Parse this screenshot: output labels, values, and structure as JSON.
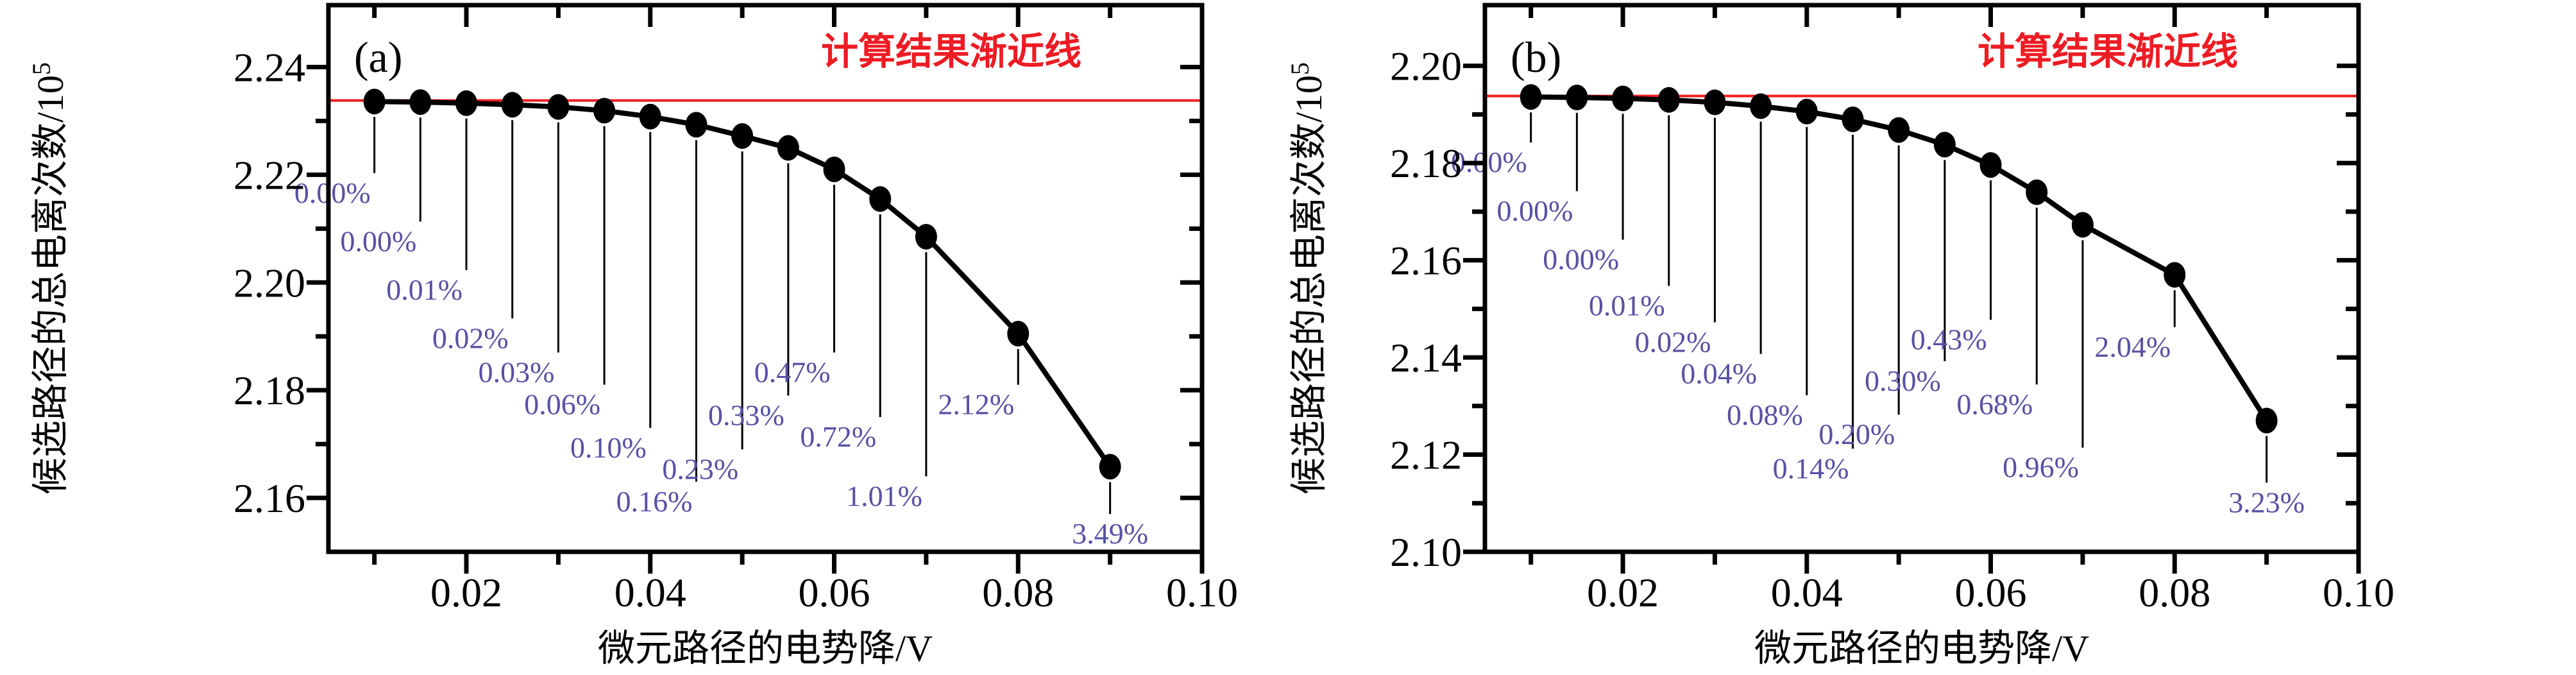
{
  "figure": {
    "background": "#ffffff",
    "series_color": "#000000",
    "asymptote_color": "#ed1c24",
    "percent_label_color": "#5751a5"
  },
  "chart_data": [
    {
      "type": "line",
      "panel_label": "(a)",
      "xlabel": "微元路径的电势降/V",
      "ylabel_base": "候选路径的总电离次数/10",
      "ylabel_exponent": "5",
      "asymptote_value": 2.2338,
      "asymptote_label": "计算结果渐近线",
      "xlim": [
        0.005,
        0.1
      ],
      "ylim": [
        2.15,
        2.2515
      ],
      "xticks": [
        {
          "v": 0.02,
          "label": "0.02"
        },
        {
          "v": 0.04,
          "label": "0.04"
        },
        {
          "v": 0.06,
          "label": "0.06"
        },
        {
          "v": 0.08,
          "label": "0.08"
        },
        {
          "v": 0.1,
          "label": "0.10"
        }
      ],
      "xminor": [
        0.01,
        0.03,
        0.05,
        0.07,
        0.09
      ],
      "yticks": [
        {
          "v": 2.16,
          "label": "2.16"
        },
        {
          "v": 2.18,
          "label": "2.18"
        },
        {
          "v": 2.2,
          "label": "2.20"
        },
        {
          "v": 2.22,
          "label": "2.22"
        },
        {
          "v": 2.24,
          "label": "2.24"
        }
      ],
      "yminor": [
        2.17,
        2.19,
        2.21,
        2.23
      ],
      "points": [
        {
          "x": 0.01,
          "y": 2.2336,
          "pct": "0.00%",
          "label_y": 2.2165
        },
        {
          "x": 0.015,
          "y": 2.2335,
          "pct": "0.00%",
          "label_y": 2.2075
        },
        {
          "x": 0.02,
          "y": 2.2333,
          "pct": "0.01%",
          "label_y": 2.1985
        },
        {
          "x": 0.025,
          "y": 2.233,
          "pct": "0.02%",
          "label_y": 2.1895
        },
        {
          "x": 0.03,
          "y": 2.2326,
          "pct": "0.03%",
          "label_y": 2.1832
        },
        {
          "x": 0.035,
          "y": 2.2319,
          "pct": "0.06%",
          "label_y": 2.1772
        },
        {
          "x": 0.04,
          "y": 2.2308,
          "pct": "0.10%",
          "label_y": 2.1692
        },
        {
          "x": 0.045,
          "y": 2.2293,
          "pct": "0.16%",
          "label_y": 2.1592
        },
        {
          "x": 0.05,
          "y": 2.2272,
          "pct": "0.23%",
          "label_y": 2.1652
        },
        {
          "x": 0.055,
          "y": 2.225,
          "pct": "0.33%",
          "label_y": 2.1752
        },
        {
          "x": 0.06,
          "y": 2.221,
          "pct": "0.47%",
          "label_y": 2.1832
        },
        {
          "x": 0.065,
          "y": 2.2155,
          "pct": "0.72%",
          "label_y": 2.1712
        },
        {
          "x": 0.07,
          "y": 2.2085,
          "pct": "1.01%",
          "label_y": 2.1602
        },
        {
          "x": 0.08,
          "y": 2.1905,
          "pct": "2.12%",
          "label_y": 2.1772
        },
        {
          "x": 0.09,
          "y": 2.1658,
          "pct": "3.49%",
          "label_y": 2.1532
        }
      ]
    },
    {
      "type": "line",
      "panel_label": "(b)",
      "xlabel": "微元路径的电势降/V",
      "ylabel_base": "候选路径的总电离次数/10",
      "ylabel_exponent": "5",
      "asymptote_value": 2.1938,
      "asymptote_label": "计算结果渐近线",
      "xlim": [
        0.005,
        0.1
      ],
      "ylim": [
        2.1,
        2.2125
      ],
      "xticks": [
        {
          "v": 0.02,
          "label": "0.02"
        },
        {
          "v": 0.04,
          "label": "0.04"
        },
        {
          "v": 0.06,
          "label": "0.06"
        },
        {
          "v": 0.08,
          "label": "0.08"
        },
        {
          "v": 0.1,
          "label": "0.10"
        }
      ],
      "xminor": [
        0.01,
        0.03,
        0.05,
        0.07,
        0.09
      ],
      "yticks": [
        {
          "v": 2.1,
          "label": "2.10"
        },
        {
          "v": 2.12,
          "label": "2.12"
        },
        {
          "v": 2.14,
          "label": "2.14"
        },
        {
          "v": 2.16,
          "label": "2.16"
        },
        {
          "v": 2.18,
          "label": "2.18"
        },
        {
          "v": 2.2,
          "label": "2.20"
        }
      ],
      "yminor": [
        2.11,
        2.13,
        2.15,
        2.17,
        2.19
      ],
      "points": [
        {
          "x": 0.01,
          "y": 2.1936,
          "pct": "0.00%",
          "label_y": 2.18
        },
        {
          "x": 0.015,
          "y": 2.1935,
          "pct": "0.00%",
          "label_y": 2.17
        },
        {
          "x": 0.02,
          "y": 2.1933,
          "pct": "0.00%",
          "label_y": 2.16
        },
        {
          "x": 0.025,
          "y": 2.193,
          "pct": "0.01%",
          "label_y": 2.1505
        },
        {
          "x": 0.03,
          "y": 2.1925,
          "pct": "0.02%",
          "label_y": 2.143
        },
        {
          "x": 0.035,
          "y": 2.1917,
          "pct": "0.04%",
          "label_y": 2.1365
        },
        {
          "x": 0.04,
          "y": 2.1906,
          "pct": "0.08%",
          "label_y": 2.128
        },
        {
          "x": 0.045,
          "y": 2.189,
          "pct": "0.14%",
          "label_y": 2.117
        },
        {
          "x": 0.05,
          "y": 2.1868,
          "pct": "0.20%",
          "label_y": 2.124
        },
        {
          "x": 0.055,
          "y": 2.1838,
          "pct": "0.30%",
          "label_y": 2.135
        },
        {
          "x": 0.06,
          "y": 2.1796,
          "pct": "0.43%",
          "label_y": 2.1435
        },
        {
          "x": 0.065,
          "y": 2.174,
          "pct": "0.68%",
          "label_y": 2.1302
        },
        {
          "x": 0.07,
          "y": 2.1673,
          "pct": "0.96%",
          "label_y": 2.1172
        },
        {
          "x": 0.08,
          "y": 2.157,
          "pct": "2.04%",
          "label_y": 2.142
        },
        {
          "x": 0.09,
          "y": 2.127,
          "pct": "3.23%",
          "label_y": 2.11
        }
      ]
    }
  ]
}
